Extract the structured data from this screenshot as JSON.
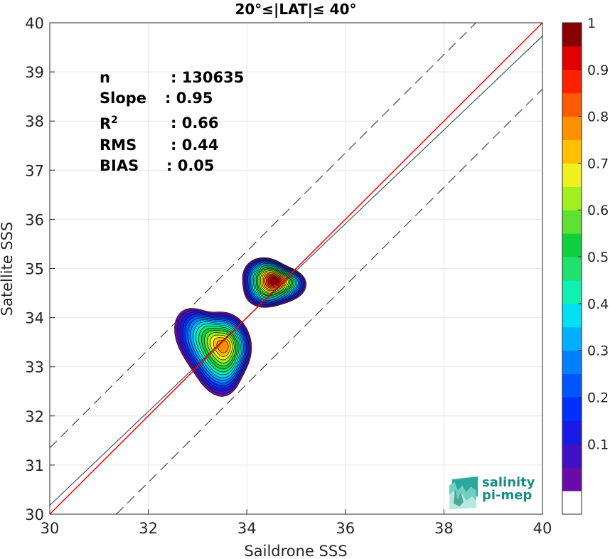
{
  "chart_data": {
    "type": "heatmap",
    "title": "20°≤|LAT|≤ 40°",
    "xlabel": "Saildrone SSS",
    "ylabel": "Satellite SSS",
    "xlim": [
      30,
      40
    ],
    "ylim": [
      30,
      40
    ],
    "xticks": [
      "30",
      "32",
      "34",
      "36",
      "38",
      "40"
    ],
    "yticks": [
      "30",
      "31",
      "32",
      "33",
      "34",
      "35",
      "36",
      "37",
      "38",
      "39",
      "40"
    ],
    "grid": true,
    "colorbar": {
      "ticks": [
        "0.1",
        "0.2",
        "0.3",
        "0.4",
        "0.5",
        "0.6",
        "0.7",
        "0.8",
        "0.9",
        "1"
      ],
      "levels": [
        0.05,
        0.1,
        0.15,
        0.2,
        0.25,
        0.3,
        0.35,
        0.4,
        0.45,
        0.5,
        0.55,
        0.6,
        0.65,
        0.7,
        0.75,
        0.8,
        0.85,
        0.9,
        0.95,
        1.0
      ],
      "colors": [
        "#ffffff",
        "#6a0aa8",
        "#3f10c4",
        "#1a1ae6",
        "#0030ff",
        "#0055ff",
        "#0080ff",
        "#00b0ff",
        "#00e0f0",
        "#10f0b0",
        "#20e070",
        "#10d040",
        "#60e030",
        "#a0f020",
        "#f0f020",
        "#ffc000",
        "#ff9000",
        "#ff5a00",
        "#ff2000",
        "#e00000",
        "#8a0000"
      ]
    },
    "stats": [
      {
        "label": "n",
        "value": ": 130635"
      },
      {
        "label": "Slope",
        "value": ": 0.95"
      },
      {
        "label": "R",
        "sup": "2",
        "value": ": 0.66"
      },
      {
        "label": "RMS",
        "value": ": 0.44"
      },
      {
        "label": "BIAS",
        "value": ": 0.05"
      }
    ],
    "lines": {
      "identity": {
        "slope": 1,
        "intercept": 0,
        "color": "#ff0000"
      },
      "fit": {
        "x": [
          30,
          40
        ],
        "y": [
          30.18,
          39.73
        ],
        "color": "#333333"
      },
      "upper_bound": {
        "slope": 1,
        "intercept": 1.35,
        "style": "dashed"
      },
      "lower_bound": {
        "slope": 1,
        "intercept": -1.35,
        "style": "dashed"
      }
    },
    "density_peaks": [
      {
        "x": 33.52,
        "y": 33.42,
        "peak": 0.82
      },
      {
        "x": 34.55,
        "y": 34.75,
        "peak": 1.0
      }
    ]
  },
  "logo": {
    "line1": "salinity",
    "line2": "pi-mep",
    "color": "#1a8a86"
  }
}
